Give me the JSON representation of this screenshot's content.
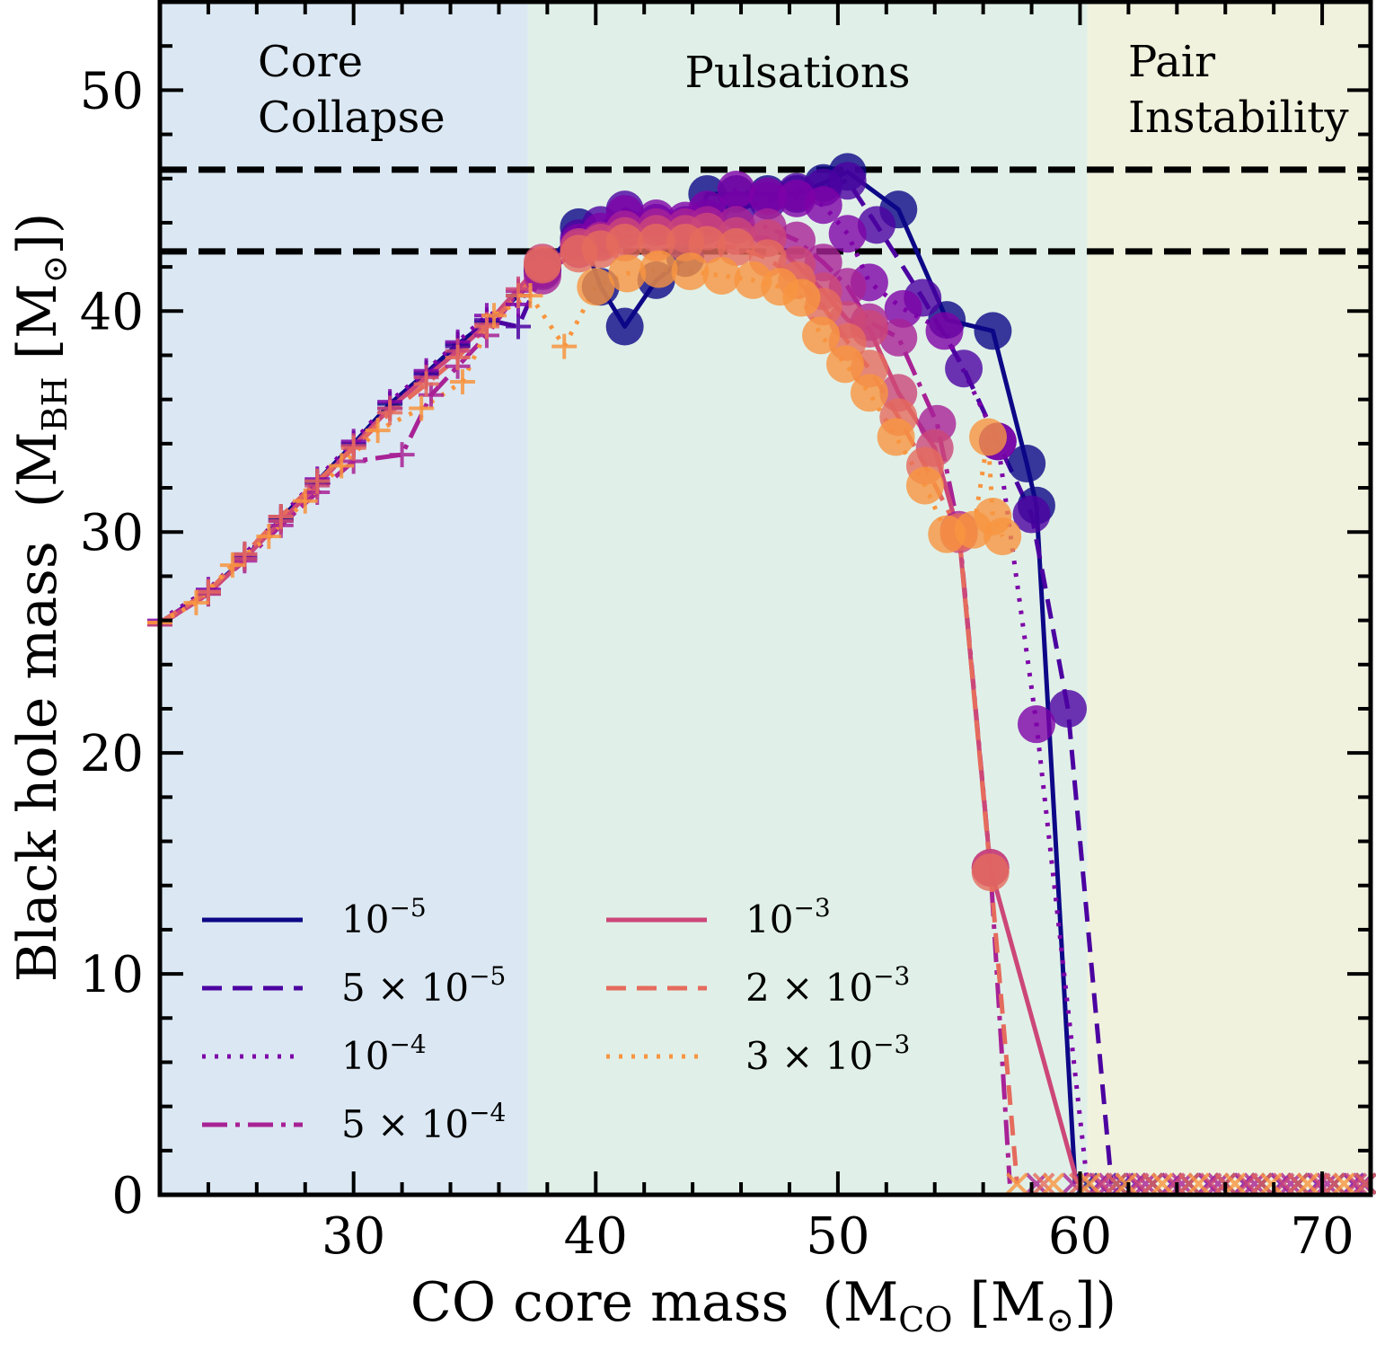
{
  "chart_data": {
    "type": "line",
    "xlabel_main": "CO core mass",
    "xlabel_unit": "(M",
    "xlabel_sub": "CO",
    "xlabel_unit2": " [M",
    "xlabel_sun": "⊙",
    "xlabel_close": "])",
    "ylabel_main": "Black hole mass",
    "ylabel_unit": "(M",
    "ylabel_sub": "BH",
    "ylabel_unit2": " [M",
    "ylabel_sun": "⊙",
    "ylabel_close": "])",
    "xlim": [
      22,
      72
    ],
    "ylim": [
      0,
      54
    ],
    "x_ticks": [
      30,
      40,
      50,
      60,
      70
    ],
    "x_tick_labels": [
      "30",
      "40",
      "50",
      "60",
      "70"
    ],
    "y_ticks": [
      0,
      10,
      20,
      30,
      40,
      50
    ],
    "y_tick_labels": [
      "0",
      "10",
      "20",
      "30",
      "40",
      "50"
    ],
    "regions": [
      {
        "label": [
          "Core",
          "Collapse"
        ],
        "x": [
          22,
          37.2
        ],
        "color": "#dbe8f3"
      },
      {
        "label": [
          "Pulsations"
        ],
        "x": [
          37.2,
          60.3
        ],
        "color": "#e0f0e8"
      },
      {
        "label": [
          "Pair",
          "Instability"
        ],
        "x": [
          60.3,
          72
        ],
        "color": "#f1f2dd"
      }
    ],
    "reference_lines": [
      46.4,
      42.7
    ],
    "series": [
      {
        "name_base": "10",
        "name_exp": "−5",
        "color": "#0d0887",
        "dash": "",
        "cc": [
          [
            22,
            25.9
          ],
          [
            24,
            27.3
          ],
          [
            25.5,
            28.8
          ],
          [
            27,
            30.6
          ],
          [
            28.5,
            32.3
          ],
          [
            30,
            34
          ],
          [
            31.5,
            35.8
          ],
          [
            33,
            37.2
          ],
          [
            34.3,
            38.5
          ],
          [
            35.5,
            39.5
          ],
          [
            36.8,
            40.7
          ]
        ],
        "pulse": [
          [
            37.8,
            41.9
          ],
          [
            39.3,
            43.8
          ],
          [
            40.2,
            41.1
          ],
          [
            41.2,
            39.3
          ],
          [
            42.5,
            41.4
          ],
          [
            43.7,
            42.4
          ],
          [
            44.6,
            45.3
          ],
          [
            45.8,
            45.3
          ],
          [
            47.1,
            45.3
          ],
          [
            48.3,
            45.3
          ],
          [
            49.4,
            45.8
          ],
          [
            50.4,
            46.3
          ],
          [
            52.5,
            44.6
          ],
          [
            54.5,
            39.6
          ],
          [
            56.4,
            39.1
          ],
          [
            57.8,
            33.1
          ],
          [
            58.2,
            31.2
          ],
          [
            59.8,
            0.5
          ]
        ],
        "pi": [
          [
            60.3,
            0.5
          ],
          [
            61.5,
            0.5
          ],
          [
            63,
            0.5
          ],
          [
            64.5,
            0.5
          ],
          [
            66,
            0.5
          ],
          [
            67.5,
            0.5
          ],
          [
            69,
            0.5
          ],
          [
            70.5,
            0.5
          ],
          [
            71.8,
            0.5
          ]
        ]
      },
      {
        "name_base": "5 × 10",
        "name_exp": "−5",
        "color": "#4c02a1",
        "dash": "22,12",
        "cc": [
          [
            22,
            25.8
          ],
          [
            24,
            27.2
          ],
          [
            25.5,
            28.9
          ],
          [
            27,
            30.5
          ],
          [
            28.5,
            32.2
          ],
          [
            30,
            33.9
          ],
          [
            31.5,
            35.6
          ],
          [
            33,
            37.1
          ],
          [
            34.3,
            38.4
          ],
          [
            35.5,
            39.6
          ],
          [
            36.8,
            39.3
          ]
        ],
        "pulse": [
          [
            37.8,
            41.8
          ],
          [
            39.3,
            43.3
          ],
          [
            40.2,
            43.9
          ],
          [
            41.2,
            44.6
          ],
          [
            42.5,
            44.0
          ],
          [
            43.7,
            43.9
          ],
          [
            44.6,
            44.2
          ],
          [
            45.8,
            44.6
          ],
          [
            47.1,
            45.0
          ],
          [
            48.3,
            45.4
          ],
          [
            49.4,
            45.6
          ],
          [
            50.4,
            45.9
          ],
          [
            51.6,
            43.9
          ],
          [
            53.5,
            40.6
          ],
          [
            55.2,
            37.4
          ],
          [
            56.6,
            34.1
          ],
          [
            58.0,
            30.8
          ],
          [
            59.5,
            22.0
          ],
          [
            61.3,
            0.5
          ]
        ],
        "pi": [
          [
            61.8,
            0.5
          ],
          [
            63,
            0.5
          ],
          [
            64.5,
            0.5
          ],
          [
            66,
            0.5
          ],
          [
            67.5,
            0.5
          ],
          [
            69,
            0.5
          ],
          [
            70.5,
            0.5
          ],
          [
            71.8,
            0.5
          ]
        ]
      },
      {
        "name_base": "10",
        "name_exp": "−4",
        "color": "#7e03a8",
        "dash": "4,10",
        "cc": [
          [
            22,
            26
          ],
          [
            24,
            27.4
          ],
          [
            25.5,
            29
          ],
          [
            27,
            30.7
          ],
          [
            28.5,
            32.4
          ],
          [
            30,
            34.1
          ],
          [
            31.5,
            35.9
          ],
          [
            33,
            37.3
          ],
          [
            34.3,
            38.6
          ],
          [
            35.5,
            39.8
          ],
          [
            36.8,
            40.3
          ]
        ],
        "pulse": [
          [
            37.8,
            42.0
          ],
          [
            39.3,
            43.1
          ],
          [
            40.2,
            43.6
          ],
          [
            41.2,
            44.4
          ],
          [
            42.5,
            44.2
          ],
          [
            43.7,
            44.1
          ],
          [
            44.6,
            44.6
          ],
          [
            45.8,
            45.5
          ],
          [
            47.1,
            45.2
          ],
          [
            48.3,
            45.1
          ],
          [
            49.4,
            44.8
          ],
          [
            50.4,
            43.5
          ],
          [
            51.3,
            41.3
          ],
          [
            52.7,
            40.1
          ],
          [
            54.4,
            39.1
          ],
          [
            56.6,
            34.1
          ],
          [
            58.2,
            21.3
          ],
          [
            60.3,
            0.5
          ]
        ],
        "pi": [
          [
            60.8,
            0.5
          ],
          [
            62.3,
            0.5
          ],
          [
            63.8,
            0.5
          ],
          [
            65.3,
            0.5
          ],
          [
            66.8,
            0.5
          ],
          [
            68.3,
            0.5
          ],
          [
            69.8,
            0.5
          ],
          [
            71.3,
            0.5
          ]
        ]
      },
      {
        "name_base": "5 × 10",
        "name_exp": "−4",
        "color": "#a82296",
        "dash": "28,9,5,9",
        "cc": [
          [
            22,
            25.9
          ],
          [
            24,
            27.3
          ],
          [
            25.5,
            28.7
          ],
          [
            27,
            30.3
          ],
          [
            28.5,
            31.8
          ],
          [
            30,
            33.2
          ],
          [
            32,
            33.5
          ],
          [
            33.2,
            36.2
          ],
          [
            34.3,
            37.5
          ],
          [
            35.5,
            38.9
          ],
          [
            36.8,
            40.9
          ]
        ],
        "pulse": [
          [
            37.8,
            41.6
          ],
          [
            39.3,
            42.8
          ],
          [
            40.2,
            43.2
          ],
          [
            41.2,
            43.7
          ],
          [
            42.5,
            43.8
          ],
          [
            43.7,
            43.8
          ],
          [
            44.6,
            43.9
          ],
          [
            45.8,
            43.9
          ],
          [
            47.1,
            43.8
          ],
          [
            48.3,
            43.2
          ],
          [
            49.4,
            42.2
          ],
          [
            50.4,
            41.1
          ],
          [
            51.3,
            39.5
          ],
          [
            52.5,
            38.8
          ],
          [
            54.1,
            34.9
          ],
          [
            55.0,
            30.1
          ],
          [
            56.3,
            14.8
          ],
          [
            57.1,
            0.5
          ]
        ],
        "pi": [
          [
            58.2,
            0.5
          ],
          [
            59.7,
            0.5
          ],
          [
            61.2,
            0.5
          ],
          [
            62.7,
            0.5
          ],
          [
            64.2,
            0.5
          ],
          [
            65.7,
            0.5
          ],
          [
            67.2,
            0.5
          ],
          [
            68.7,
            0.5
          ],
          [
            70.2,
            0.5
          ],
          [
            71.7,
            0.5
          ]
        ]
      },
      {
        "name_base": "10",
        "name_exp": "−3",
        "color": "#cc4778",
        "dash": "",
        "cc": [
          [
            22,
            25.8
          ],
          [
            24,
            27.2
          ],
          [
            25.5,
            28.8
          ],
          [
            27,
            30.5
          ],
          [
            28.5,
            32.1
          ],
          [
            30,
            33.9
          ],
          [
            31.5,
            35.6
          ],
          [
            33,
            37.0
          ],
          [
            34.3,
            38.2
          ],
          [
            35.5,
            39.4
          ],
          [
            36.8,
            41.0
          ]
        ],
        "pulse": [
          [
            37.8,
            42.2
          ],
          [
            39.3,
            42.9
          ],
          [
            40.2,
            43.1
          ],
          [
            41.2,
            43.4
          ],
          [
            42.5,
            43.5
          ],
          [
            43.7,
            43.5
          ],
          [
            44.6,
            43.6
          ],
          [
            45.8,
            43.4
          ],
          [
            47.1,
            43.3
          ],
          [
            48.3,
            42.1
          ],
          [
            49.4,
            40.9
          ],
          [
            50.4,
            39.6
          ],
          [
            51.3,
            39.2
          ],
          [
            52.5,
            36.3
          ],
          [
            54.0,
            33.8
          ],
          [
            55.0,
            29.9
          ],
          [
            56.3,
            14.8
          ],
          [
            59.9,
            0.5
          ]
        ],
        "pi": [
          [
            60.9,
            0.5
          ],
          [
            62.4,
            0.5
          ],
          [
            63.9,
            0.5
          ],
          [
            65.4,
            0.5
          ],
          [
            66.9,
            0.5
          ],
          [
            68.4,
            0.5
          ],
          [
            69.9,
            0.5
          ],
          [
            71.4,
            0.5
          ]
        ]
      },
      {
        "name_base": "2 × 10",
        "name_exp": "−3",
        "color": "#e56b5d",
        "dash": "22,12",
        "cc": [
          [
            22,
            25.9
          ],
          [
            24,
            27.3
          ],
          [
            25.5,
            29.0
          ],
          [
            27,
            30.7
          ],
          [
            28.5,
            32.3
          ],
          [
            30,
            33.8
          ],
          [
            31.5,
            35.4
          ],
          [
            33,
            36.7
          ],
          [
            34.3,
            37.9
          ],
          [
            35.5,
            39.3
          ],
          [
            36.8,
            40.7
          ]
        ],
        "pulse": [
          [
            37.8,
            42.1
          ],
          [
            39.3,
            42.6
          ],
          [
            40.2,
            42.8
          ],
          [
            41.2,
            43.1
          ],
          [
            42.5,
            43.1
          ],
          [
            43.7,
            43.1
          ],
          [
            44.6,
            43.0
          ],
          [
            45.8,
            42.9
          ],
          [
            47.1,
            42.4
          ],
          [
            48.3,
            41.4
          ],
          [
            49.4,
            40.2
          ],
          [
            50.4,
            38.6
          ],
          [
            51.3,
            37.4
          ],
          [
            52.5,
            35.2
          ],
          [
            53.6,
            33.0
          ],
          [
            55.0,
            30.0
          ],
          [
            56.3,
            14.6
          ],
          [
            57.4,
            0.5
          ]
        ],
        "pi": [
          [
            58.5,
            0.5
          ],
          [
            60,
            0.5
          ],
          [
            61.5,
            0.5
          ],
          [
            63,
            0.5
          ],
          [
            64.5,
            0.5
          ],
          [
            66,
            0.5
          ],
          [
            67.5,
            0.5
          ],
          [
            69,
            0.5
          ],
          [
            70.5,
            0.5
          ],
          [
            71.8,
            0.5
          ]
        ]
      },
      {
        "name_base": "3 × 10",
        "name_exp": "−3",
        "color": "#f89540",
        "dash": "4,10",
        "cc": [
          [
            22,
            25.9
          ],
          [
            23.5,
            26.8
          ],
          [
            25,
            28.5
          ],
          [
            26.5,
            29.8
          ],
          [
            28,
            31.4
          ],
          [
            29.5,
            33.0
          ],
          [
            31,
            34.6
          ],
          [
            32.8,
            35.6
          ],
          [
            34.5,
            36.8
          ],
          [
            35.8,
            39.8
          ],
          [
            37.3,
            40.7
          ],
          [
            38.7,
            38.4
          ]
        ],
        "pulse": [
          [
            40.0,
            41.1
          ],
          [
            41.3,
            41.7
          ],
          [
            42.6,
            41.9
          ],
          [
            43.9,
            41.8
          ],
          [
            45.2,
            41.6
          ],
          [
            46.5,
            41.4
          ],
          [
            47.6,
            41.1
          ],
          [
            48.5,
            40.6
          ],
          [
            49.3,
            38.9
          ],
          [
            50.3,
            37.6
          ],
          [
            51.3,
            36.3
          ],
          [
            52.4,
            34.3
          ],
          [
            53.6,
            32.1
          ],
          [
            54.5,
            29.9
          ],
          [
            55.6,
            30.1
          ],
          [
            56.2,
            34.3
          ],
          [
            56.4,
            30.7
          ],
          [
            56.8,
            29.8
          ]
        ],
        "pi": [
          [
            57.4,
            0.5
          ],
          [
            58.9,
            0.5
          ],
          [
            60.4,
            0.5
          ],
          [
            61.9,
            0.5
          ],
          [
            63.4,
            0.5
          ],
          [
            64.9,
            0.5
          ],
          [
            66.4,
            0.5
          ],
          [
            67.9,
            0.5
          ],
          [
            69.4,
            0.5
          ],
          [
            70.9,
            0.5
          ]
        ]
      }
    ]
  }
}
